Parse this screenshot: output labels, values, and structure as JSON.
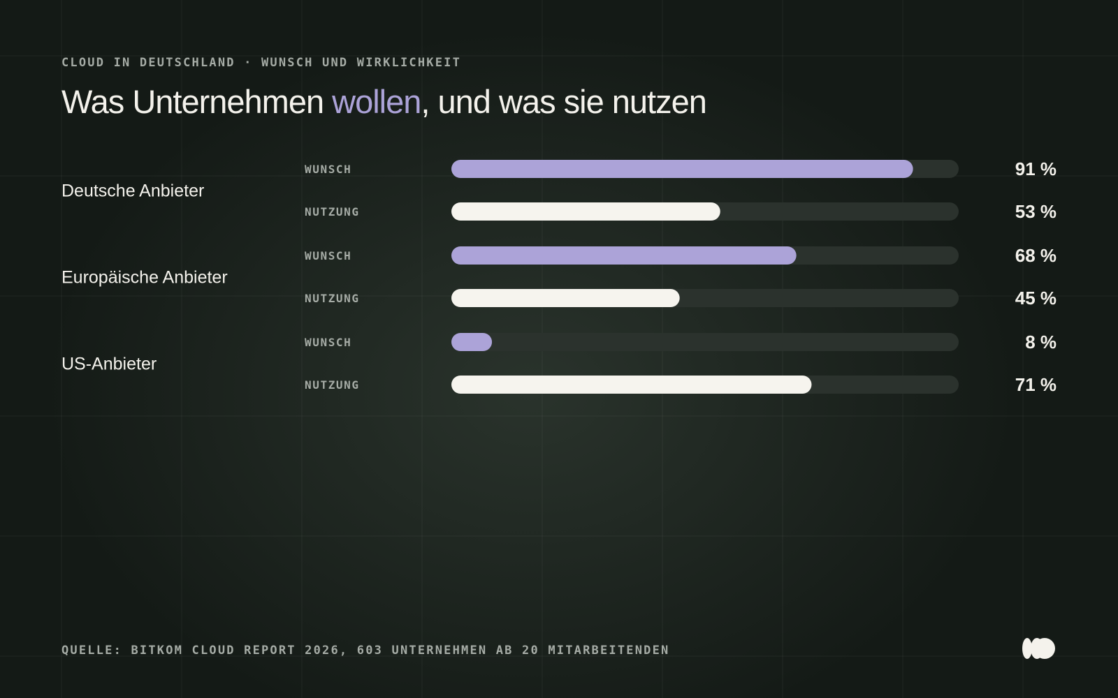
{
  "header": {
    "eyebrow": "CLOUD IN DEUTSCHLAND · WUNSCH UND WIRKLICHKEIT",
    "title_before": "Was Unternehmen ",
    "title_highlight": "wollen",
    "title_after": ", und was sie nutzen"
  },
  "footer": {
    "source": "QUELLE: BITKOM CLOUD REPORT 2026, 603 UNTERNEHMEN AB 20 MITARBEITENDEN"
  },
  "colors": {
    "background": "#141a16",
    "wunsch": "#aca3d8",
    "nutzung": "#f6f4ee",
    "track": "#2b322d",
    "highlight": "#aca3d8"
  },
  "chart_data": {
    "type": "bar",
    "orientation": "horizontal",
    "value_suffix": " %",
    "xlim": [
      0,
      100
    ],
    "series_names": [
      "WUNSCH",
      "NUTZUNG"
    ],
    "groups": [
      {
        "label": "Deutsche Anbieter",
        "bars": [
          {
            "series": "WUNSCH",
            "value": 91
          },
          {
            "series": "NUTZUNG",
            "value": 53
          }
        ]
      },
      {
        "label": "Europäische Anbieter",
        "bars": [
          {
            "series": "WUNSCH",
            "value": 68
          },
          {
            "series": "NUTZUNG",
            "value": 45
          }
        ]
      },
      {
        "label": "US-Anbieter",
        "bars": [
          {
            "series": "WUNSCH",
            "value": 8
          },
          {
            "series": "NUTZUNG",
            "value": 71
          }
        ]
      }
    ]
  }
}
